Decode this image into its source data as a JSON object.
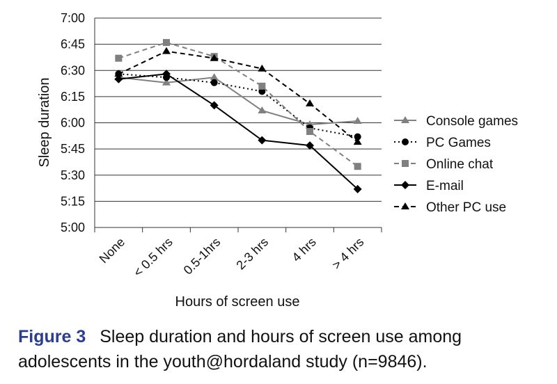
{
  "chart_data": {
    "type": "line",
    "categories": [
      "None",
      "< 0.5 hrs",
      "0.5-1hrs",
      "2-3 hrs",
      "4 hrs",
      "> 4 hrs"
    ],
    "y_ticks": [
      "5:00",
      "5:15",
      "5:30",
      "5:45",
      "6:00",
      "6:15",
      "6:30",
      "6:45",
      "7:00"
    ],
    "ylim_minutes": [
      300,
      420
    ],
    "xlabel": "Hours of screen use",
    "ylabel": "Sleep duration",
    "grid": true,
    "legend_position": "right",
    "series": [
      {
        "name": "Console games",
        "marker": "triangle",
        "dash": "solid",
        "color": "#808080",
        "values": [
          386,
          383,
          386,
          367,
          359,
          361
        ]
      },
      {
        "name": "PC Games",
        "marker": "circle",
        "dash": "dotted",
        "color": "#000000",
        "values": [
          388,
          386,
          383,
          378,
          357,
          352
        ]
      },
      {
        "name": "Online chat",
        "marker": "square",
        "dash": "dashed",
        "color": "#808080",
        "values": [
          397,
          406,
          398,
          381,
          355,
          335
        ]
      },
      {
        "name": "E-mail",
        "marker": "diamond",
        "dash": "solid",
        "color": "#000000",
        "values": [
          385,
          388,
          370,
          350,
          347,
          322
        ]
      },
      {
        "name": "Other PC use",
        "marker": "triangle",
        "dash": "dashed",
        "color": "#000000",
        "values": [
          388,
          401,
          397,
          391,
          371,
          349
        ]
      }
    ]
  },
  "caption": {
    "label": "Figure 3",
    "text": "Sleep duration and hours of screen use among adolescents in the youth@hordaland study (n=9846)."
  }
}
